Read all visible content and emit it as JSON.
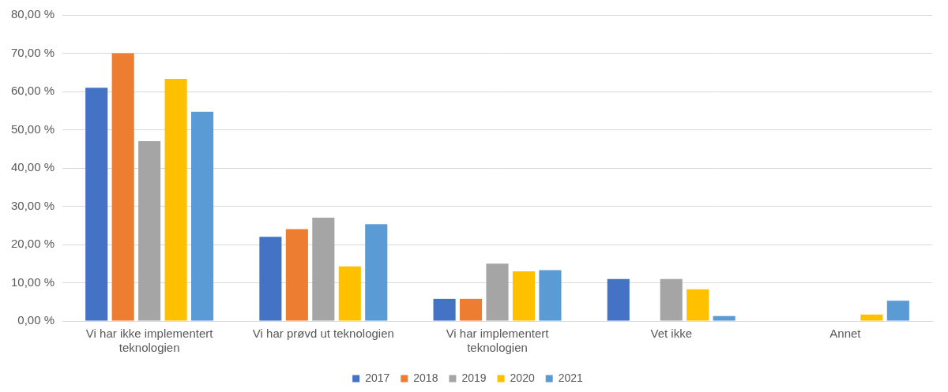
{
  "chart_data": {
    "type": "bar",
    "categories": [
      "Vi har ikke implementert teknologien",
      "Vi har prøvd ut teknologien",
      "Vi har implementert teknologien",
      "Vet ikke",
      "Annet"
    ],
    "series": [
      {
        "name": "2017",
        "color": "#4472c4",
        "values": [
          61,
          22,
          5.8,
          11,
          null
        ]
      },
      {
        "name": "2018",
        "color": "#ed7d31",
        "values": [
          70,
          24,
          5.8,
          null,
          null
        ]
      },
      {
        "name": "2019",
        "color": "#a5a5a5",
        "values": [
          47,
          27,
          15,
          11,
          null
        ]
      },
      {
        "name": "2020",
        "color": "#ffc000",
        "values": [
          63.3,
          14.3,
          13,
          8.3,
          1.7
        ]
      },
      {
        "name": "2021",
        "color": "#5b9bd5",
        "values": [
          54.7,
          25.3,
          13.3,
          1.3,
          5.3
        ]
      }
    ],
    "ylim": [
      0,
      80
    ],
    "yticks": [
      {
        "value": 0,
        "label": "0,00 %"
      },
      {
        "value": 10,
        "label": "10,00 %"
      },
      {
        "value": 20,
        "label": "20,00 %"
      },
      {
        "value": 30,
        "label": "30,00 %"
      },
      {
        "value": 40,
        "label": "40,00 %"
      },
      {
        "value": 50,
        "label": "50,00 %"
      },
      {
        "value": 60,
        "label": "60,00 %"
      },
      {
        "value": 70,
        "label": "70,00 %"
      },
      {
        "value": 80,
        "label": "80,00 %"
      }
    ],
    "grid": true,
    "legend": "bottom"
  }
}
